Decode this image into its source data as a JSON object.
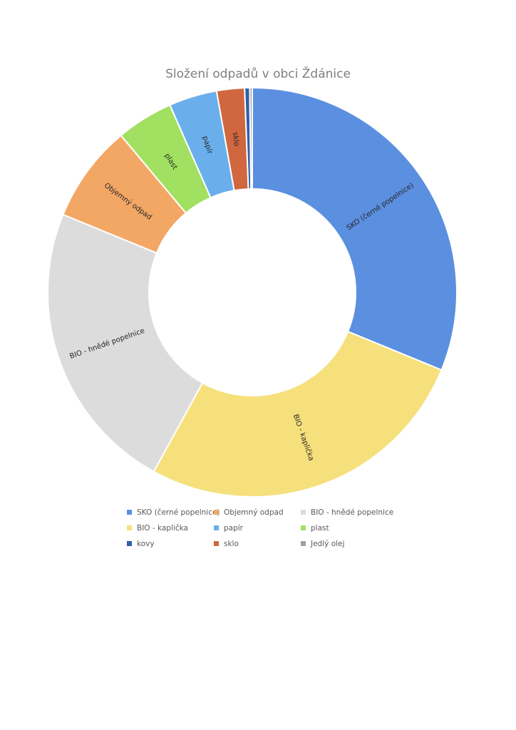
{
  "chart_data": {
    "type": "pie",
    "title": "Složení odpadů v obci Ždánice",
    "slices": [
      {
        "label": "SKO (černé popelnice)",
        "value": 31.2,
        "color": "#5b8fe0",
        "label_on_chart": "SKO (černé popelnice)"
      },
      {
        "label": "BIO - kaplička",
        "value": 26.8,
        "color": "#f6e07c",
        "label_on_chart": "BIO - kaplička"
      },
      {
        "label": "BIO - hnědé popelnice",
        "value": 23.2,
        "color": "#dcdcdc",
        "label_on_chart": "BIO - hnědé popelnice"
      },
      {
        "label": "Objemný odpad",
        "value": 7.7,
        "color": "#f3a764",
        "label_on_chart": "Objemný odpad"
      },
      {
        "label": "plast",
        "value": 4.5,
        "color": "#a1e060",
        "label_on_chart": "plast"
      },
      {
        "label": "papír",
        "value": 3.8,
        "color": "#6aaeec",
        "label_on_chart": "papír"
      },
      {
        "label": "sklo",
        "value": 2.2,
        "color": "#d0673e",
        "label_on_chart": "sklo"
      },
      {
        "label": "kovy",
        "value": 0.4,
        "color": "#2f5fa8",
        "label_on_chart": ""
      },
      {
        "label": "Jedlý olej",
        "value": 0.2,
        "color": "#a0a0a0",
        "label_on_chart": ""
      }
    ],
    "legend_position": "bottom",
    "legend": [
      {
        "label": "SKO (černé popelnice)",
        "color": "#5b8fe0"
      },
      {
        "label": "Objemný odpad",
        "color": "#f3a764"
      },
      {
        "label": "BIO - hnědé popelnice",
        "color": "#dcdcdc"
      },
      {
        "label": "BIO - kaplička",
        "color": "#f6e07c"
      },
      {
        "label": "papír",
        "color": "#6aaeec"
      },
      {
        "label": "plast",
        "color": "#a1e060"
      },
      {
        "label": "kovy",
        "color": "#2f5fa8"
      },
      {
        "label": "sklo",
        "color": "#d0673e"
      },
      {
        "label": "Jedlý olej",
        "color": "#a0a0a0"
      }
    ]
  }
}
